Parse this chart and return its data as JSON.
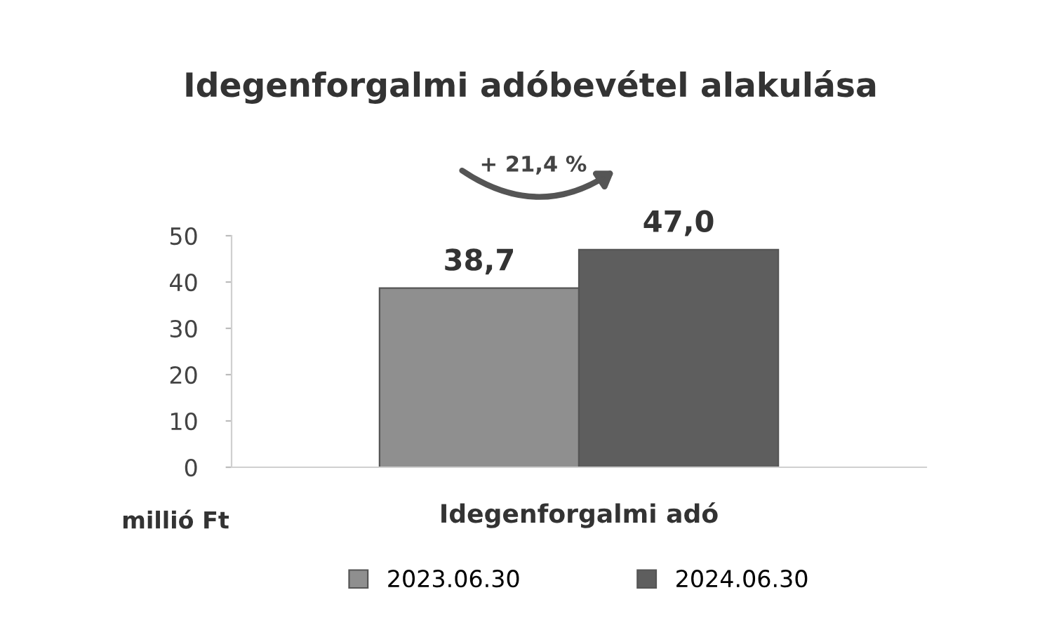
{
  "chart_data": {
    "type": "bar",
    "title": "Idegenforgalmi adóbevétel alakulása",
    "categories": [
      "Idegenforgalmi adó"
    ],
    "series": [
      {
        "name": "2023.06.30",
        "color": "#8f8f8f",
        "values": [
          38.7
        ]
      },
      {
        "name": "2024.06.30",
        "color": "#5e5e5e",
        "values": [
          47.0
        ]
      }
    ],
    "value_labels": [
      [
        "38,7"
      ],
      [
        "47,0"
      ]
    ],
    "ylabel": "millió Ft",
    "annotations": [
      "+ 21,4 %"
    ],
    "ylim": [
      0,
      50
    ],
    "yticks": [
      0,
      10,
      20,
      30,
      40,
      50
    ],
    "grid": false,
    "legend": "bottom"
  }
}
